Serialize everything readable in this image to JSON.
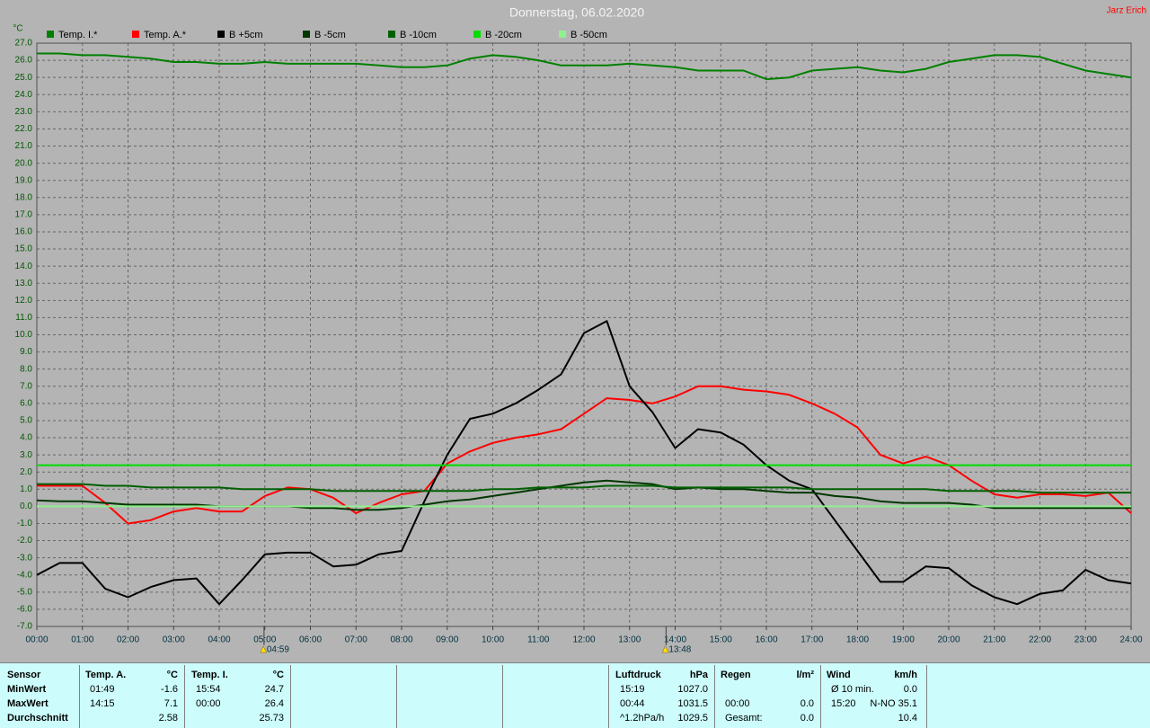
{
  "header": {
    "user": "Jarz Erich"
  },
  "chart_data": {
    "type": "line",
    "title": "Donnerstag, 06.02.2020",
    "y_label": "°C",
    "x": [
      0,
      0.5,
      1,
      1.5,
      2,
      2.5,
      3,
      3.5,
      4,
      4.5,
      5,
      5.5,
      6,
      6.5,
      7,
      7.5,
      8,
      8.5,
      9,
      9.5,
      10,
      10.5,
      11,
      11.5,
      12,
      12.5,
      13,
      13.5,
      14,
      14.5,
      15,
      15.5,
      16,
      16.5,
      17,
      17.5,
      18,
      18.5,
      19,
      19.5,
      20,
      20.5,
      21,
      21.5,
      22,
      22.5,
      23,
      23.5,
      24
    ],
    "xlim": [
      0,
      24
    ],
    "xticks": [
      {
        "value": 0,
        "label": "00:00"
      },
      {
        "value": 1,
        "label": "01:00"
      },
      {
        "value": 2,
        "label": "02:00"
      },
      {
        "value": 3,
        "label": "03:00"
      },
      {
        "value": 4,
        "label": "04:00"
      },
      {
        "value": 5,
        "label": "05:00"
      },
      {
        "value": 6,
        "label": "06:00"
      },
      {
        "value": 7,
        "label": "07:00"
      },
      {
        "value": 8,
        "label": "08:00"
      },
      {
        "value": 9,
        "label": "09:00"
      },
      {
        "value": 10,
        "label": "10:00"
      },
      {
        "value": 11,
        "label": "11:00"
      },
      {
        "value": 12,
        "label": "12:00"
      },
      {
        "value": 13,
        "label": "13:00"
      },
      {
        "value": 14,
        "label": "14:00"
      },
      {
        "value": 15,
        "label": "15:00"
      },
      {
        "value": 16,
        "label": "16:00"
      },
      {
        "value": 17,
        "label": "17:00"
      },
      {
        "value": 18,
        "label": "18:00"
      },
      {
        "value": 19,
        "label": "19:00"
      },
      {
        "value": 20,
        "label": "20:00"
      },
      {
        "value": 21,
        "label": "21:00"
      },
      {
        "value": 22,
        "label": "22:00"
      },
      {
        "value": 23,
        "label": "23:00"
      },
      {
        "value": 24,
        "label": "24:00"
      }
    ],
    "ylim": [
      -7,
      27
    ],
    "yticks": [
      {
        "value": 27,
        "label": "27.0"
      },
      {
        "value": 26,
        "label": "26.0"
      },
      {
        "value": 25,
        "label": "25.0"
      },
      {
        "value": 24,
        "label": "24.0"
      },
      {
        "value": 23,
        "label": "23.0"
      },
      {
        "value": 22,
        "label": "22.0"
      },
      {
        "value": 21,
        "label": "21.0"
      },
      {
        "value": 20,
        "label": "20.0"
      },
      {
        "value": 19,
        "label": "19.0"
      },
      {
        "value": 18,
        "label": "18.0"
      },
      {
        "value": 17,
        "label": "17.0"
      },
      {
        "value": 16,
        "label": "16.0"
      },
      {
        "value": 15,
        "label": "15.0"
      },
      {
        "value": 14,
        "label": "14.0"
      },
      {
        "value": 13,
        "label": "13.0"
      },
      {
        "value": 12,
        "label": "12.0"
      },
      {
        "value": 11,
        "label": "11.0"
      },
      {
        "value": 10,
        "label": "10.0"
      },
      {
        "value": 9,
        "label": "9.0"
      },
      {
        "value": 8,
        "label": "8.0"
      },
      {
        "value": 7,
        "label": "7.0"
      },
      {
        "value": 6,
        "label": "6.0"
      },
      {
        "value": 5,
        "label": "5.0"
      },
      {
        "value": 4,
        "label": "4.0"
      },
      {
        "value": 3,
        "label": "3.0"
      },
      {
        "value": 2,
        "label": "2.0"
      },
      {
        "value": 1,
        "label": "1.0"
      },
      {
        "value": 0,
        "label": "0.0"
      },
      {
        "value": -1,
        "label": "-1.0"
      },
      {
        "value": -2,
        "label": "-2.0"
      },
      {
        "value": -3,
        "label": "-3.0"
      },
      {
        "value": -4,
        "label": "-4.0"
      },
      {
        "value": -5,
        "label": "-5.0"
      },
      {
        "value": -6,
        "label": "-6.0"
      },
      {
        "value": -7,
        "label": "-7.0"
      }
    ],
    "grid": true,
    "annotations": [
      {
        "value": 4.983,
        "label": "04:59"
      },
      {
        "value": 13.8,
        "label": "13:48"
      }
    ],
    "series": [
      {
        "name": "Temp. I.*",
        "color": "#008000",
        "values": [
          26.4,
          26.4,
          26.3,
          26.3,
          26.2,
          26.1,
          25.9,
          25.9,
          25.8,
          25.8,
          25.9,
          25.8,
          25.8,
          25.8,
          25.8,
          25.7,
          25.6,
          25.6,
          25.7,
          26.1,
          26.3,
          26.2,
          26.0,
          25.7,
          25.7,
          25.7,
          25.8,
          25.7,
          25.6,
          25.4,
          25.4,
          25.4,
          24.9,
          25.0,
          25.4,
          25.5,
          25.6,
          25.4,
          25.3,
          25.5,
          25.9,
          26.1,
          26.3,
          26.3,
          26.2,
          25.8,
          25.4,
          25.2,
          25.0
        ]
      },
      {
        "name": "Temp. A.*",
        "color": "#ff0000",
        "values": [
          1.2,
          1.2,
          1.2,
          0.2,
          -1.0,
          -0.8,
          -0.3,
          -0.1,
          -0.3,
          -0.3,
          0.6,
          1.1,
          1.0,
          0.5,
          -0.4,
          0.2,
          0.7,
          0.9,
          2.5,
          3.2,
          3.7,
          4.0,
          4.2,
          4.5,
          5.4,
          6.3,
          6.2,
          6.0,
          6.4,
          7.0,
          7.0,
          6.8,
          6.7,
          6.5,
          6.0,
          5.4,
          4.6,
          3.0,
          2.5,
          2.9,
          2.4,
          1.5,
          0.7,
          0.5,
          0.7,
          0.7,
          0.6,
          0.8,
          -0.4
        ]
      },
      {
        "name": "B +5cm",
        "color": "#000000",
        "values": [
          -4.0,
          -3.3,
          -3.3,
          -4.8,
          -5.3,
          -4.7,
          -4.3,
          -4.2,
          -5.7,
          -4.3,
          -2.8,
          -2.7,
          -2.7,
          -3.5,
          -3.4,
          -2.8,
          -2.6,
          0.3,
          3.0,
          5.1,
          5.4,
          6.0,
          6.8,
          7.7,
          10.1,
          10.8,
          7.0,
          5.5,
          3.4,
          4.5,
          4.3,
          3.6,
          2.4,
          1.5,
          1.0,
          -0.8,
          -2.6,
          -4.4,
          -4.4,
          -3.5,
          -3.6,
          -4.6,
          -5.3,
          -5.7,
          -5.1,
          -4.9,
          -3.7,
          -4.3,
          -4.5
        ]
      },
      {
        "name": "B -5cm",
        "color": "#003800",
        "values": [
          0.35,
          0.3,
          0.3,
          0.2,
          0.1,
          0.1,
          0.1,
          0.1,
          0.0,
          0.0,
          0.0,
          0.0,
          -0.1,
          -0.1,
          -0.2,
          -0.2,
          -0.1,
          0.1,
          0.3,
          0.4,
          0.6,
          0.8,
          1.0,
          1.2,
          1.4,
          1.5,
          1.4,
          1.3,
          1.0,
          1.1,
          1.0,
          1.0,
          0.9,
          0.8,
          0.8,
          0.6,
          0.5,
          0.3,
          0.2,
          0.2,
          0.2,
          0.1,
          -0.1,
          -0.1,
          -0.1,
          -0.1,
          -0.1,
          -0.1,
          -0.1
        ]
      },
      {
        "name": "B -10cm",
        "color": "#006000",
        "values": [
          1.3,
          1.3,
          1.3,
          1.2,
          1.2,
          1.1,
          1.1,
          1.1,
          1.1,
          1.0,
          1.0,
          1.0,
          1.0,
          0.9,
          0.9,
          0.9,
          0.9,
          0.9,
          0.9,
          0.9,
          1.0,
          1.0,
          1.1,
          1.1,
          1.1,
          1.2,
          1.2,
          1.2,
          1.1,
          1.1,
          1.1,
          1.1,
          1.1,
          1.1,
          1.0,
          1.0,
          1.0,
          1.0,
          1.0,
          1.0,
          0.9,
          0.9,
          0.9,
          0.9,
          0.8,
          0.8,
          0.8,
          0.8,
          0.8
        ]
      },
      {
        "name": "B -20cm",
        "color": "#00dd00",
        "values": [
          2.4,
          2.4,
          2.4,
          2.4,
          2.4,
          2.4,
          2.4,
          2.4,
          2.4,
          2.4,
          2.4,
          2.4,
          2.4,
          2.4,
          2.4,
          2.4,
          2.4,
          2.4,
          2.4,
          2.4,
          2.4,
          2.4,
          2.4,
          2.4,
          2.4,
          2.4,
          2.4,
          2.4,
          2.4,
          2.4,
          2.4,
          2.4,
          2.4,
          2.4,
          2.4,
          2.4,
          2.4,
          2.4,
          2.4,
          2.4,
          2.4,
          2.4,
          2.4,
          2.4,
          2.4,
          2.4,
          2.4,
          2.4,
          2.4
        ]
      },
      {
        "name": "B -50cm",
        "color": "#90f090",
        "values": [
          0,
          0,
          0,
          0,
          0,
          0,
          0,
          0,
          0,
          0,
          0,
          0,
          0,
          0,
          0,
          0,
          0,
          0,
          0,
          0,
          0,
          0,
          0,
          0,
          0,
          0,
          0,
          0,
          0,
          0,
          0,
          0,
          0,
          0,
          0,
          0,
          0,
          0,
          0,
          0,
          0,
          0,
          0,
          0,
          0,
          0,
          0,
          0,
          0
        ]
      }
    ]
  },
  "summary": {
    "labels": [
      "Sensor",
      "MinWert",
      "MaxWert",
      "Durchschnitt"
    ],
    "blocks": [
      {
        "name": "Temp. A.",
        "unit": "°C",
        "cells": [
          [
            "01:49",
            "-1.6"
          ],
          [
            "14:15",
            "7.1"
          ],
          [
            null,
            "2.58"
          ]
        ]
      },
      {
        "name": "Temp. I.",
        "unit": "°C",
        "cells": [
          [
            "15:54",
            "24.7"
          ],
          [
            "00:00",
            "26.4"
          ],
          [
            null,
            "25.73"
          ]
        ]
      },
      {
        "name": "Luftdruck",
        "unit": "hPa",
        "cells": [
          [
            "15:19",
            "1027.0"
          ],
          [
            "00:44",
            "1031.5"
          ],
          [
            "^1.2hPa/h",
            "1029.5"
          ]
        ]
      },
      {
        "name": "Regen",
        "unit": "l/m²",
        "cells": [
          [
            null,
            null
          ],
          [
            "00:00",
            "0.0"
          ],
          [
            "Gesamt:",
            "0.0"
          ]
        ]
      },
      {
        "name": "Wind",
        "unit": "km/h",
        "cells": [
          [
            "Ø 10 min.",
            "0.0"
          ],
          [
            "15:20",
            "N-NO 35.1"
          ],
          [
            null,
            "10.4"
          ]
        ]
      }
    ]
  }
}
